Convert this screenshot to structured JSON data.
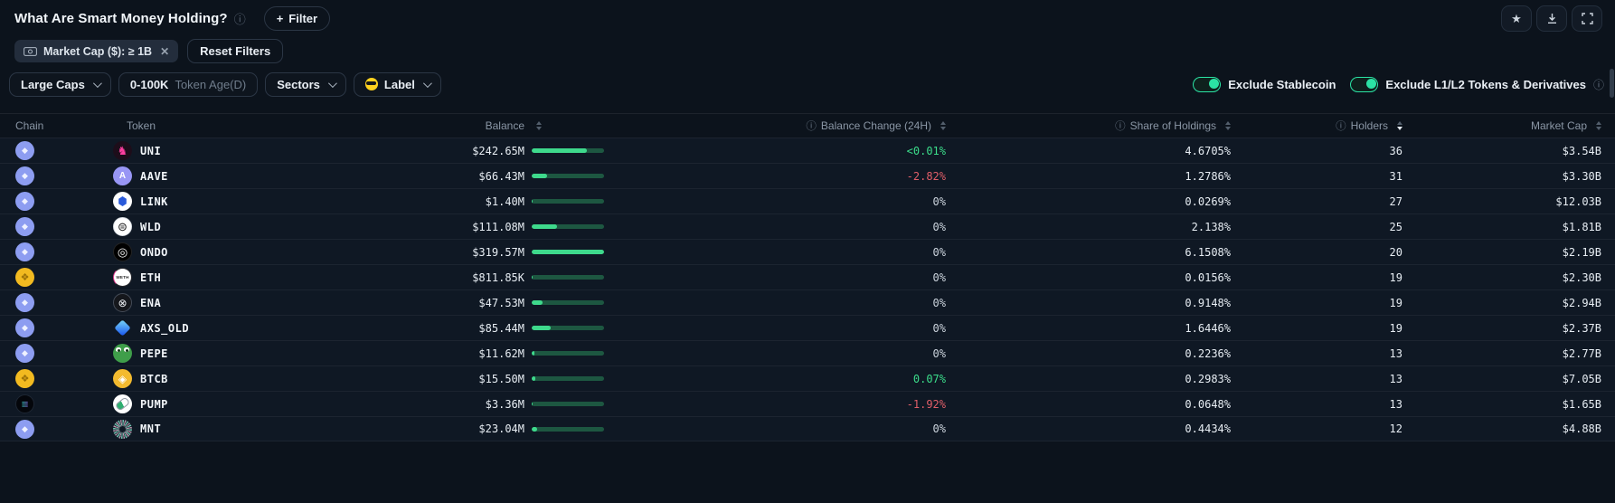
{
  "header": {
    "title": "What Are Smart Money Holding?",
    "filter_button": {
      "plus": "+",
      "label": "Filter"
    }
  },
  "actions": {
    "favorite_icon": "star",
    "download_icon": "download",
    "fullscreen_icon": "fullscreen"
  },
  "filters": {
    "chip": {
      "icon": "banknote-icon",
      "label": "Market Cap ($): ≥ 1B",
      "close": "✕"
    },
    "reset_label": "Reset Filters"
  },
  "controls": {
    "pills": [
      {
        "label": "Large Caps",
        "chevron": true
      },
      {
        "label": "0-100K",
        "suffix": "Token Age(D)"
      },
      {
        "label": "Sectors",
        "chevron": true
      },
      {
        "label": "Label",
        "chevron": true,
        "emoji": true
      }
    ],
    "toggles": [
      {
        "label": "Exclude Stablecoin",
        "on": true
      },
      {
        "label": "Exclude L1/L2 Tokens & Derivatives",
        "on": true,
        "info": true
      }
    ]
  },
  "table": {
    "columns": [
      {
        "key": "chain",
        "label": "Chain"
      },
      {
        "key": "token",
        "label": "Token"
      },
      {
        "key": "balance",
        "label": "Balance",
        "sort": "none"
      },
      {
        "key": "change",
        "label": "Balance Change (24H)",
        "info": true,
        "sort": "none"
      },
      {
        "key": "share",
        "label": "Share of Holdings",
        "info": true,
        "sort": "none"
      },
      {
        "key": "holders",
        "label": "Holders",
        "info": true,
        "sort": "desc"
      },
      {
        "key": "mcap",
        "label": "Market Cap",
        "sort": "none"
      }
    ],
    "rows": [
      {
        "chain": "ethereum",
        "token": "UNI",
        "icon": "uni",
        "balance": "$242.65M",
        "bar_pct": 75.9,
        "change": "<0.01%",
        "change_dir": "up",
        "share": "4.6705%",
        "holders": "36",
        "mcap": "$3.54B"
      },
      {
        "chain": "ethereum",
        "token": "AAVE",
        "icon": "aave",
        "balance": "$66.43M",
        "bar_pct": 20.8,
        "change": "-2.82%",
        "change_dir": "down",
        "share": "1.2786%",
        "holders": "31",
        "mcap": "$3.30B"
      },
      {
        "chain": "ethereum",
        "token": "LINK",
        "icon": "link",
        "balance": "$1.40M",
        "bar_pct": 0.5,
        "change": "0%",
        "change_dir": "flat",
        "share": "0.0269%",
        "holders": "27",
        "mcap": "$12.03B"
      },
      {
        "chain": "ethereum",
        "token": "WLD",
        "icon": "wld",
        "balance": "$111.08M",
        "bar_pct": 34.8,
        "change": "0%",
        "change_dir": "flat",
        "share": "2.138%",
        "holders": "25",
        "mcap": "$1.81B"
      },
      {
        "chain": "ethereum",
        "token": "ONDO",
        "icon": "ondo",
        "balance": "$319.57M",
        "bar_pct": 100,
        "change": "0%",
        "change_dir": "flat",
        "share": "6.1508%",
        "holders": "20",
        "mcap": "$2.19B"
      },
      {
        "chain": "bnb",
        "token": "ETH",
        "icon": "eth",
        "balance": "$811.85K",
        "bar_pct": 0.3,
        "change": "0%",
        "change_dir": "flat",
        "share": "0.0156%",
        "holders": "19",
        "mcap": "$2.30B"
      },
      {
        "chain": "ethereum",
        "token": "ENA",
        "icon": "ena",
        "balance": "$47.53M",
        "bar_pct": 14.9,
        "change": "0%",
        "change_dir": "flat",
        "share": "0.9148%",
        "holders": "19",
        "mcap": "$2.94B"
      },
      {
        "chain": "ethereum",
        "token": "AXS_OLD",
        "icon": "axs",
        "balance": "$85.44M",
        "bar_pct": 26.7,
        "change": "0%",
        "change_dir": "flat",
        "share": "1.6446%",
        "holders": "19",
        "mcap": "$2.37B"
      },
      {
        "chain": "ethereum",
        "token": "PEPE",
        "icon": "pepe",
        "balance": "$11.62M",
        "bar_pct": 3.6,
        "change": "0%",
        "change_dir": "flat",
        "share": "0.2236%",
        "holders": "13",
        "mcap": "$2.77B"
      },
      {
        "chain": "bnb",
        "token": "BTCB",
        "icon": "btcb",
        "balance": "$15.50M",
        "bar_pct": 4.9,
        "change": "0.07%",
        "change_dir": "up",
        "share": "0.2983%",
        "holders": "13",
        "mcap": "$7.05B"
      },
      {
        "chain": "solana",
        "token": "PUMP",
        "icon": "pump",
        "balance": "$3.36M",
        "bar_pct": 1.1,
        "change": "-1.92%",
        "change_dir": "down",
        "share": "0.0648%",
        "holders": "13",
        "mcap": "$1.65B"
      },
      {
        "chain": "ethereum",
        "token": "MNT",
        "icon": "mnt",
        "balance": "$23.04M",
        "bar_pct": 7.2,
        "change": "0%",
        "change_dir": "flat",
        "share": "0.4434%",
        "holders": "12",
        "mcap": "$4.88B"
      }
    ]
  },
  "colors": {
    "background": "#0c131c",
    "row_background": "#0f1824",
    "accent_toggle_green": "#2be3a4",
    "positive_green": "#3bdc8a",
    "negative_red": "#e05e68",
    "bar_fill": "#3ed98c",
    "bar_track": "#1d5741",
    "chain_ethereum": "#8d9df1",
    "chain_bnb": "#f2ba20"
  }
}
